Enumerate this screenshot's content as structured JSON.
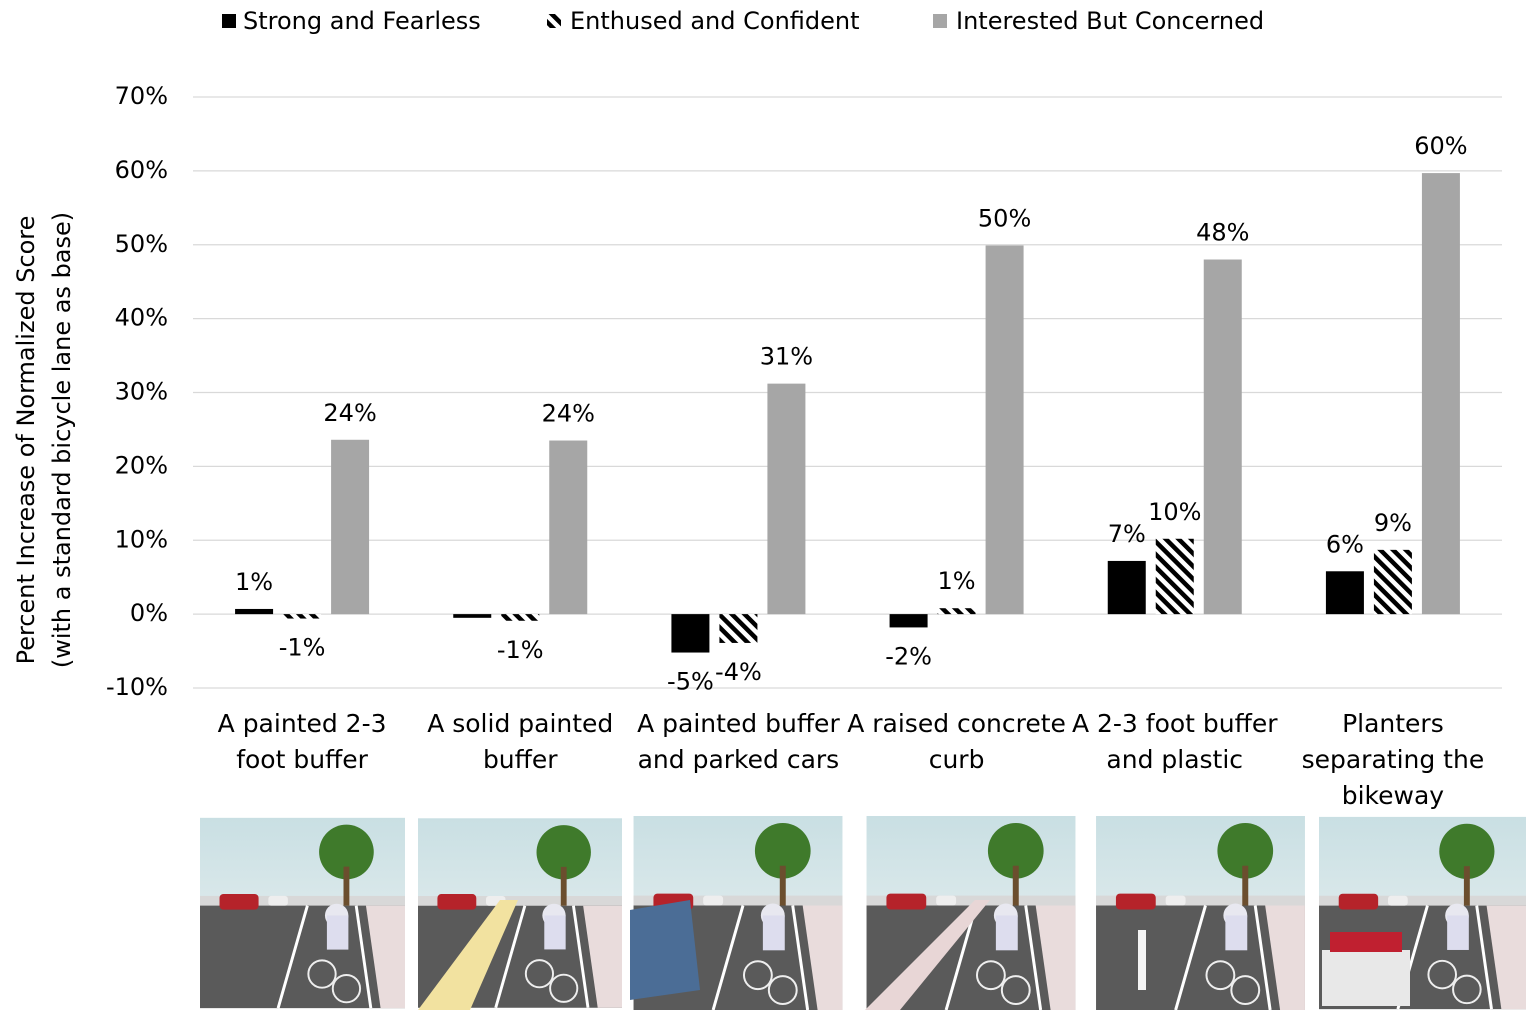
{
  "chart_data": {
    "type": "bar",
    "y_label": [
      "Percent Increase of Normalized Score",
      "(with a standard bicycle lane as base)"
    ],
    "categories": [
      "A painted 2-3 foot buffer",
      "A solid painted buffer",
      "A painted buffer and parked cars",
      "A raised concrete curb",
      "A 2-3 foot buffer and plastic",
      "Planters separating the bikeway"
    ],
    "series": [
      {
        "name": "Strong and Fearless",
        "color": "#000000",
        "values": [
          0.7,
          -0.5,
          -5.2,
          -1.8,
          7.2,
          5.8
        ],
        "value_labels": [
          "1%",
          null,
          "-5%",
          "-2%",
          "7%",
          "6%"
        ]
      },
      {
        "name": "Enthused and Confident",
        "color": "#000000",
        "pattern": "hatch",
        "values": [
          -0.6,
          -0.9,
          -3.9,
          0.8,
          10.2,
          8.7
        ],
        "value_labels": [
          "-1%",
          "-1%",
          "-4%",
          "1%",
          "10%",
          "9%"
        ]
      },
      {
        "name": "Interested But Concerned",
        "color": "#a6a6a6",
        "values": [
          23.6,
          23.5,
          31.2,
          49.9,
          48.0,
          59.7
        ],
        "value_labels": [
          "24%",
          "24%",
          "31%",
          "50%",
          "48%",
          "60%"
        ]
      }
    ],
    "ylim": [
      -10,
      70
    ],
    "yticks": [
      {
        "value": -10,
        "label": "-10%"
      },
      {
        "value": 0,
        "label": "0%"
      },
      {
        "value": 10,
        "label": "10%"
      },
      {
        "value": 20,
        "label": "20%"
      },
      {
        "value": 30,
        "label": "30%"
      },
      {
        "value": 40,
        "label": "40%"
      },
      {
        "value": 50,
        "label": "50%"
      },
      {
        "value": 60,
        "label": "60%"
      },
      {
        "value": 70,
        "label": "70%"
      }
    ],
    "grid": true,
    "legend": "top"
  }
}
